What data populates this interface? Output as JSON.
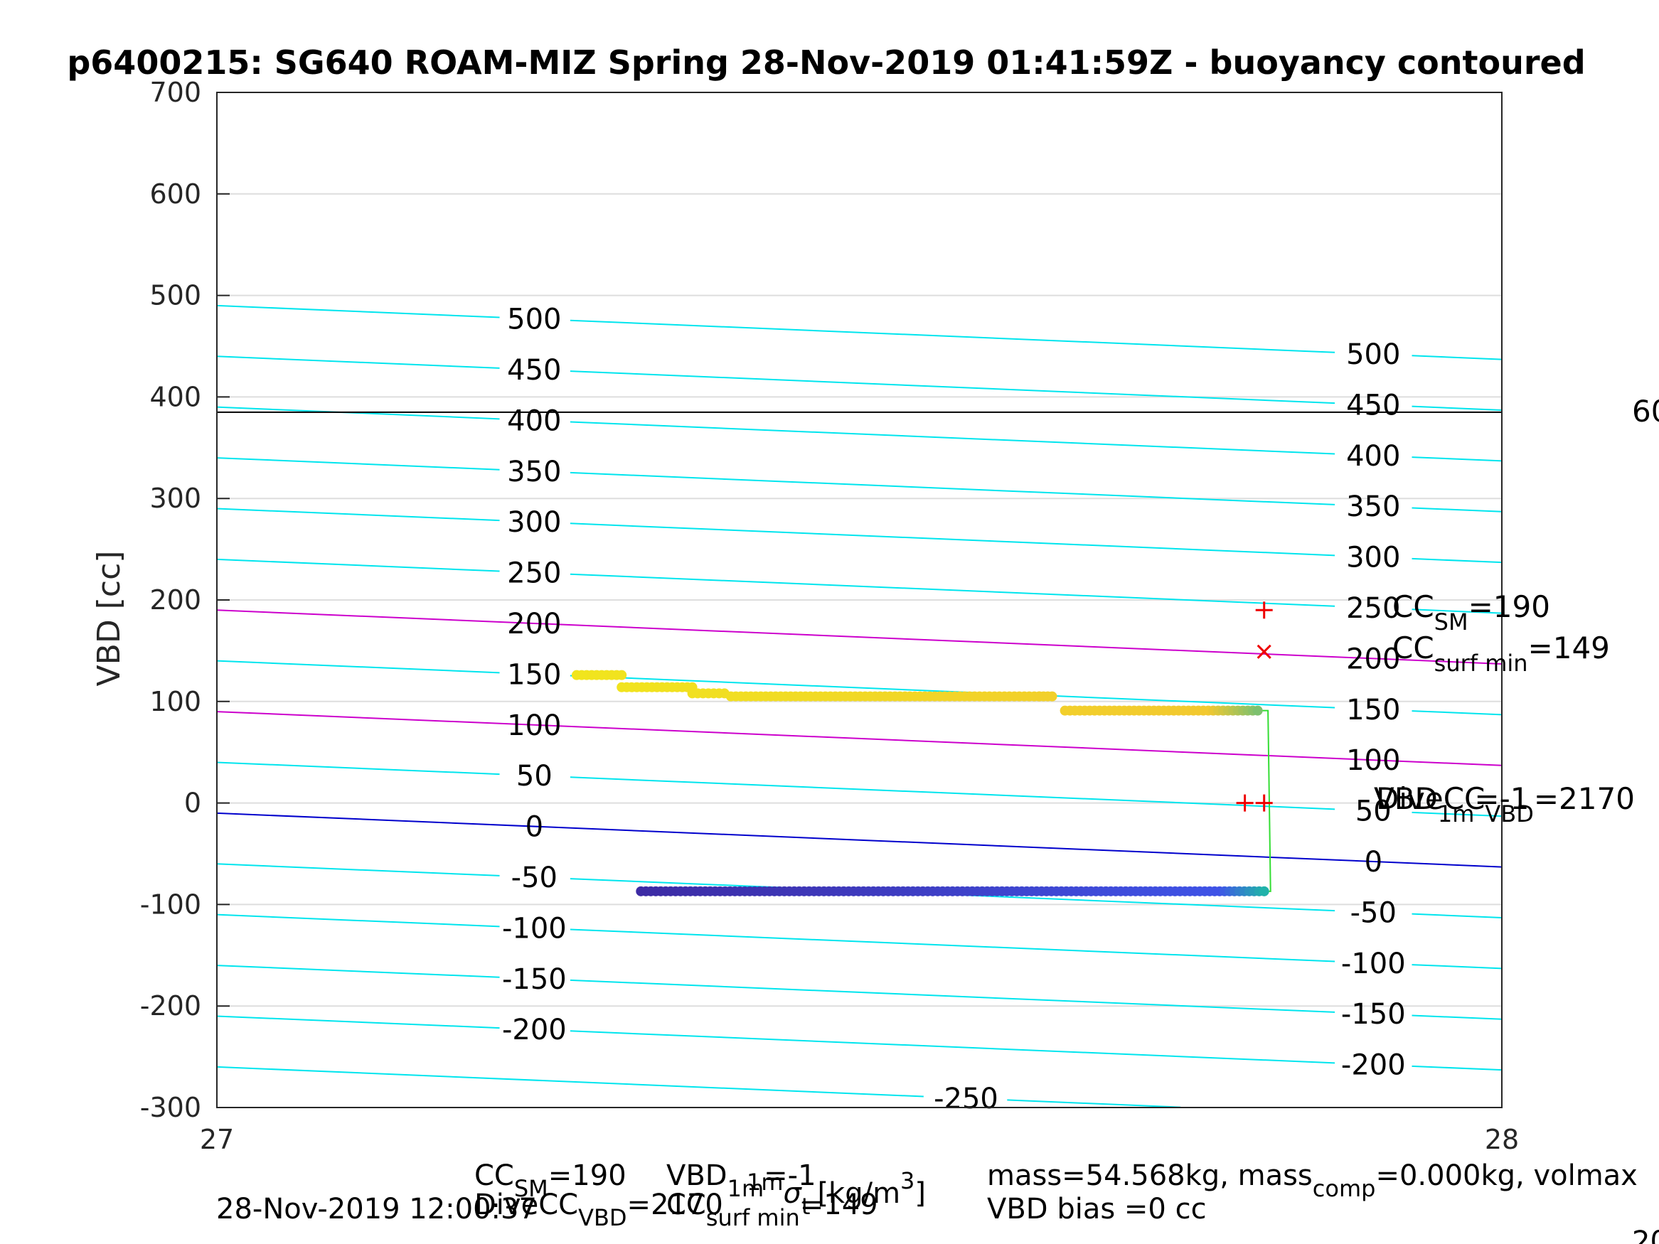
{
  "chart_data": {
    "type": "scatter",
    "title": "p6400215: SG640 ROAM-MIZ Spring 28-Nov-2019 01:41:59Z - buoyancy contoured",
    "ylabel": "VBD [cc]",
    "xlabel_main": "",
    "xlabel_sigma": "σ",
    "xlabel_sigma_sub": "t",
    "xlabel_units": "[kg/m",
    "xlabel_units_sup": "3",
    "xlabel_units_end": "]",
    "xlabel_prefix_sup": "1m",
    "xlim": [
      27,
      28
    ],
    "ylim": [
      -300,
      700
    ],
    "xticks": [
      "27",
      "28"
    ],
    "yticks": [
      "700",
      "600",
      "500",
      "400",
      "300",
      "200",
      "100",
      "0",
      "-100",
      "-200",
      "-300"
    ],
    "grid": true,
    "contours": {
      "levels": [
        500,
        450,
        400,
        350,
        300,
        250,
        200,
        150,
        100,
        50,
        0,
        -50,
        -100,
        -150,
        -200,
        -250
      ],
      "left_y": [
        490,
        440,
        390,
        340,
        290,
        240,
        190,
        140,
        90,
        40,
        -10,
        -60,
        -110,
        -160,
        -210,
        -260
      ],
      "right_y": [
        437,
        387,
        337,
        287,
        237,
        187,
        137,
        87,
        37,
        -13,
        -63,
        -113,
        -163,
        -213,
        -263,
        -313
      ],
      "labels_left": [
        "500",
        "450",
        "400",
        "350",
        "300",
        "250",
        "200",
        "150",
        "100",
        "50",
        "0",
        "-50",
        "-100",
        "-150",
        "-200",
        "-250"
      ],
      "labels_right": [
        "500",
        "450",
        "400",
        "350",
        "300",
        "250",
        "200",
        "150",
        "100",
        "50",
        "0",
        "-50",
        "-100",
        "-150",
        "-200"
      ],
      "color_default": "#00e5ee",
      "color_zero": "#0000cc",
      "color_highlight": "#cc00cc",
      "highlight_levels": [
        200,
        100
      ]
    },
    "hline": {
      "y": 385,
      "color": "#000000",
      "right_label": "60"
    },
    "series": [
      {
        "segments": [
          {
            "x0": 27.28,
            "x1": 27.315,
            "y": 126
          },
          {
            "x0": 27.315,
            "x1": 27.37,
            "y": 114
          },
          {
            "x0": 27.37,
            "x1": 27.395,
            "y": 108
          },
          {
            "x0": 27.4,
            "x1": 27.64,
            "y": 105
          },
          {
            "x0": 27.64,
            "x1": 27.65,
            "y": 105
          },
          {
            "x0": 27.66,
            "x1": 27.81,
            "y": 91
          }
        ],
        "color_start": "#f1e51d",
        "color_end": "#f2c830",
        "color_tail": "#7dc06e"
      },
      {
        "segments": [
          {
            "x0": 27.33,
            "x1": 27.815,
            "y": -87
          }
        ],
        "color_start": "#3d2ba4",
        "color_end": "#3f54e8",
        "color_tail": "#20b2aa"
      }
    ],
    "path": {
      "points": [
        [
          27.81,
          91
        ],
        [
          27.818,
          91
        ],
        [
          27.82,
          -87
        ],
        [
          27.815,
          -87
        ]
      ],
      "color": "#33dd33"
    },
    "markers": [
      {
        "kind": "plus",
        "x": 27.815,
        "y": 190,
        "color": "#ee0000"
      },
      {
        "kind": "cross",
        "x": 27.815,
        "y": 149,
        "color": "#ee0000"
      },
      {
        "kind": "plus",
        "x": 27.8,
        "y": 0,
        "color": "#ee0000"
      },
      {
        "kind": "plus",
        "x": 27.815,
        "y": 0,
        "color": "#ee0000"
      }
    ],
    "annotations": {
      "cc_sm": {
        "main": "CC",
        "sub": "SM",
        "tail": "=190"
      },
      "cc_surf": {
        "main": "CC",
        "sub": "surf min",
        "tail": "=149"
      },
      "vbd_1m": {
        "main": "VBD",
        "sub": "1m",
        "tail": "=-1"
      },
      "divecc": {
        "main": "DiveCC",
        "sub": "VBD",
        "tail": "=2170"
      }
    },
    "footer": {
      "cc_sm_main": "CC",
      "cc_sm_sub": "SM",
      "cc_sm_tail": "=190",
      "vbd_main": "VBD",
      "vbd_sub": "1m",
      "vbd_tail": "=-1",
      "divecc_main": "DiveCC",
      "divecc_sub": "VBD",
      "divecc_tail": "=2170",
      "ccsurf_main": "CC",
      "ccsurf_sub": "surf min",
      "ccsurf_tail": "=149",
      "date": "28-Nov-2019 12:00:37",
      "mass_a": "mass=54.568kg, mass",
      "mass_sub": "comp",
      "mass_b": "=0.000kg, volmax",
      "vbd_bias": "VBD bias =0 cc",
      "corner_fragment": "20"
    }
  }
}
